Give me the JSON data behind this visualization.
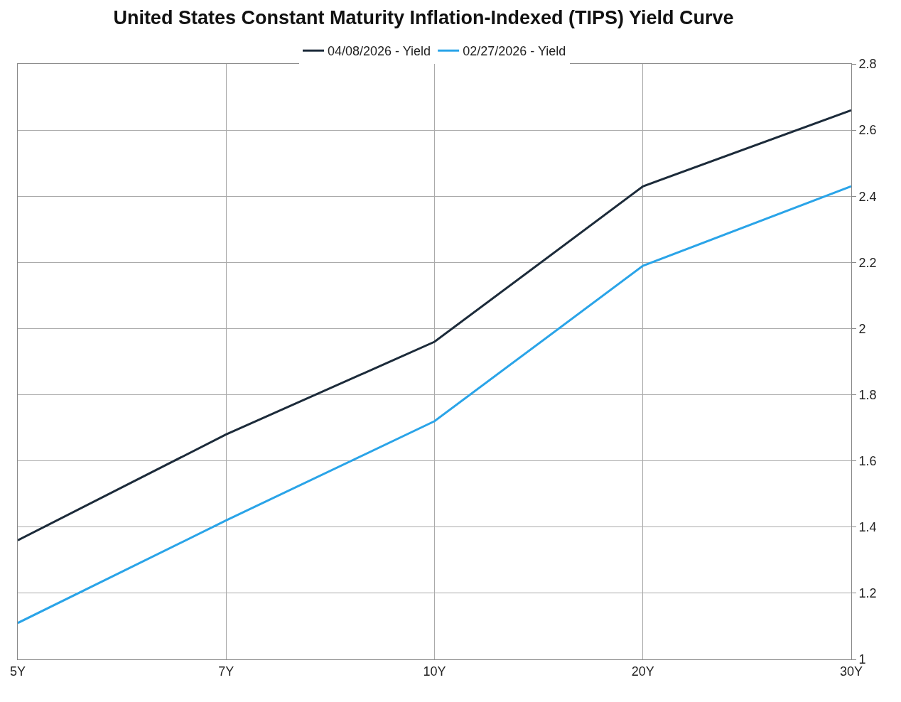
{
  "chart_data": {
    "type": "line",
    "title": "United States Constant Maturity Inflation-Indexed (TIPS) Yield Curve",
    "categories": [
      "5Y",
      "7Y",
      "10Y",
      "20Y",
      "30Y"
    ],
    "series": [
      {
        "name": "04/08/2026 - Yield",
        "color": "#1c2b3a",
        "values": [
          1.36,
          1.68,
          1.96,
          2.43,
          2.66
        ]
      },
      {
        "name": "02/27/2026 - Yield",
        "color": "#2aa4e8",
        "values": [
          1.11,
          1.42,
          1.72,
          2.19,
          2.43
        ]
      }
    ],
    "ylim": [
      1,
      2.8
    ],
    "yticks": [
      1,
      1.2,
      1.4,
      1.6,
      1.8,
      2,
      2.2,
      2.4,
      2.6,
      2.8
    ],
    "grid": true,
    "legend": "top",
    "marker": "none",
    "line_style": "solid"
  }
}
